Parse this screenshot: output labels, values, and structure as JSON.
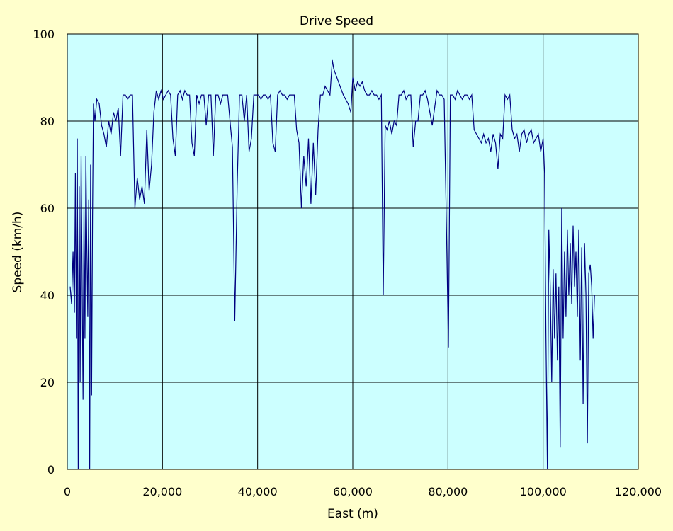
{
  "chart_data": {
    "type": "line",
    "title": "Drive Speed",
    "xlabel": "East (m)",
    "ylabel": "Speed (km/h)",
    "xlim": [
      0,
      120000
    ],
    "ylim": [
      0,
      100
    ],
    "x_ticks": [
      0,
      20000,
      40000,
      60000,
      80000,
      100000,
      120000
    ],
    "x_tick_labels": [
      "0",
      "20,000",
      "40,000",
      "60,000",
      "80,000",
      "100,000",
      "120,000"
    ],
    "y_ticks": [
      0,
      20,
      40,
      60,
      80,
      100
    ],
    "y_tick_labels": [
      "0",
      "20",
      "40",
      "60",
      "80",
      "100"
    ],
    "grid": true,
    "legend": "none",
    "colors": {
      "background": "#ffffcc",
      "plot_area": "#ccffff",
      "line": "#000080",
      "grid": "#000000"
    },
    "series": [
      {
        "values": [
          [
            600,
            42
          ],
          [
            900,
            38
          ],
          [
            1200,
            50
          ],
          [
            1500,
            36
          ],
          [
            1700,
            68
          ],
          [
            1900,
            30
          ],
          [
            2100,
            76
          ],
          [
            2300,
            0
          ],
          [
            2500,
            65
          ],
          [
            2700,
            20
          ],
          [
            2900,
            72
          ],
          [
            3100,
            45
          ],
          [
            3300,
            16
          ],
          [
            3500,
            60
          ],
          [
            3700,
            30
          ],
          [
            3900,
            72
          ],
          [
            4100,
            52
          ],
          [
            4300,
            35
          ],
          [
            4500,
            62
          ],
          [
            4700,
            0
          ],
          [
            4900,
            70
          ],
          [
            5100,
            17
          ],
          [
            5300,
            58
          ],
          [
            5500,
            84
          ],
          [
            5800,
            80
          ],
          [
            6200,
            85
          ],
          [
            6700,
            84
          ],
          [
            7200,
            79
          ],
          [
            7700,
            77
          ],
          [
            8200,
            74
          ],
          [
            8700,
            80
          ],
          [
            9200,
            77
          ],
          [
            9700,
            82
          ],
          [
            10200,
            80
          ],
          [
            10700,
            83
          ],
          [
            11200,
            72
          ],
          [
            11700,
            86
          ],
          [
            12200,
            86
          ],
          [
            12700,
            85
          ],
          [
            13200,
            86
          ],
          [
            13700,
            86
          ],
          [
            14200,
            60
          ],
          [
            14700,
            67
          ],
          [
            15200,
            62
          ],
          [
            15700,
            65
          ],
          [
            16200,
            61
          ],
          [
            16700,
            78
          ],
          [
            17200,
            64
          ],
          [
            17700,
            70
          ],
          [
            18200,
            82
          ],
          [
            18700,
            87
          ],
          [
            19200,
            85
          ],
          [
            19700,
            87
          ],
          [
            20200,
            85
          ],
          [
            20700,
            86
          ],
          [
            21200,
            87
          ],
          [
            21700,
            86
          ],
          [
            22200,
            76
          ],
          [
            22700,
            72
          ],
          [
            23200,
            86
          ],
          [
            23700,
            87
          ],
          [
            24200,
            85
          ],
          [
            24700,
            87
          ],
          [
            25200,
            86
          ],
          [
            25700,
            86
          ],
          [
            26200,
            75
          ],
          [
            26700,
            72
          ],
          [
            27200,
            86
          ],
          [
            27700,
            84
          ],
          [
            28200,
            86
          ],
          [
            28700,
            86
          ],
          [
            29200,
            79
          ],
          [
            29700,
            86
          ],
          [
            30200,
            86
          ],
          [
            30700,
            72
          ],
          [
            31200,
            86
          ],
          [
            31700,
            86
          ],
          [
            32200,
            84
          ],
          [
            32700,
            86
          ],
          [
            33200,
            86
          ],
          [
            33700,
            86
          ],
          [
            34200,
            80
          ],
          [
            34700,
            74
          ],
          [
            35200,
            34
          ],
          [
            35700,
            65
          ],
          [
            36200,
            86
          ],
          [
            36700,
            86
          ],
          [
            37200,
            80
          ],
          [
            37700,
            86
          ],
          [
            38200,
            73
          ],
          [
            38700,
            76
          ],
          [
            39200,
            86
          ],
          [
            39700,
            86
          ],
          [
            40200,
            86
          ],
          [
            40700,
            85
          ],
          [
            41200,
            86
          ],
          [
            41700,
            86
          ],
          [
            42200,
            85
          ],
          [
            42700,
            86
          ],
          [
            43200,
            75
          ],
          [
            43700,
            73
          ],
          [
            44200,
            86
          ],
          [
            44700,
            87
          ],
          [
            45200,
            86
          ],
          [
            45700,
            86
          ],
          [
            46200,
            85
          ],
          [
            46700,
            86
          ],
          [
            47200,
            86
          ],
          [
            47700,
            86
          ],
          [
            48200,
            78
          ],
          [
            48700,
            75
          ],
          [
            49200,
            60
          ],
          [
            49700,
            72
          ],
          [
            50200,
            65
          ],
          [
            50700,
            76
          ],
          [
            51200,
            61
          ],
          [
            51700,
            75
          ],
          [
            52200,
            63
          ],
          [
            52700,
            78
          ],
          [
            53200,
            86
          ],
          [
            53700,
            86
          ],
          [
            54200,
            88
          ],
          [
            54700,
            87
          ],
          [
            55200,
            86
          ],
          [
            55700,
            94
          ],
          [
            56000,
            92
          ],
          [
            57000,
            89
          ],
          [
            58000,
            86
          ],
          [
            59000,
            84
          ],
          [
            59600,
            82
          ],
          [
            60000,
            90
          ],
          [
            60500,
            87
          ],
          [
            61000,
            89
          ],
          [
            61500,
            88
          ],
          [
            62000,
            89
          ],
          [
            62500,
            87
          ],
          [
            63000,
            86
          ],
          [
            63500,
            86
          ],
          [
            64000,
            87
          ],
          [
            64500,
            86
          ],
          [
            65000,
            86
          ],
          [
            65500,
            85
          ],
          [
            66000,
            86
          ],
          [
            66400,
            40
          ],
          [
            66800,
            79
          ],
          [
            67200,
            78
          ],
          [
            67700,
            80
          ],
          [
            68200,
            77
          ],
          [
            68700,
            80
          ],
          [
            69200,
            79
          ],
          [
            69700,
            86
          ],
          [
            70200,
            86
          ],
          [
            70700,
            87
          ],
          [
            71200,
            85
          ],
          [
            71700,
            86
          ],
          [
            72200,
            86
          ],
          [
            72700,
            74
          ],
          [
            73200,
            80
          ],
          [
            73700,
            80
          ],
          [
            74200,
            86
          ],
          [
            74700,
            86
          ],
          [
            75200,
            87
          ],
          [
            75700,
            85
          ],
          [
            76200,
            82
          ],
          [
            76700,
            79
          ],
          [
            77200,
            83
          ],
          [
            77700,
            87
          ],
          [
            78200,
            86
          ],
          [
            78700,
            86
          ],
          [
            79200,
            85
          ],
          [
            79700,
            55
          ],
          [
            80100,
            28
          ],
          [
            80500,
            86
          ],
          [
            81000,
            86
          ],
          [
            81500,
            85
          ],
          [
            82000,
            87
          ],
          [
            82500,
            86
          ],
          [
            83000,
            85
          ],
          [
            83500,
            86
          ],
          [
            84000,
            86
          ],
          [
            84500,
            85
          ],
          [
            85000,
            86
          ],
          [
            85500,
            78
          ],
          [
            86000,
            77
          ],
          [
            86500,
            76
          ],
          [
            87000,
            75
          ],
          [
            87500,
            77
          ],
          [
            88000,
            75
          ],
          [
            88500,
            76
          ],
          [
            89000,
            73
          ],
          [
            89500,
            77
          ],
          [
            90000,
            75
          ],
          [
            90500,
            69
          ],
          [
            91000,
            77
          ],
          [
            91500,
            76
          ],
          [
            92000,
            86
          ],
          [
            92500,
            85
          ],
          [
            93000,
            86
          ],
          [
            93500,
            78
          ],
          [
            94000,
            76
          ],
          [
            94500,
            77
          ],
          [
            95000,
            73
          ],
          [
            95500,
            77
          ],
          [
            96000,
            78
          ],
          [
            96500,
            75
          ],
          [
            97000,
            77
          ],
          [
            97500,
            78
          ],
          [
            98000,
            75
          ],
          [
            98500,
            76
          ],
          [
            99000,
            77
          ],
          [
            99500,
            73
          ],
          [
            100000,
            76
          ],
          [
            100300,
            68
          ],
          [
            100600,
            30
          ],
          [
            100900,
            0
          ],
          [
            101200,
            55
          ],
          [
            101500,
            42
          ],
          [
            101800,
            20
          ],
          [
            102100,
            46
          ],
          [
            102400,
            30
          ],
          [
            102700,
            45
          ],
          [
            103000,
            25
          ],
          [
            103300,
            42
          ],
          [
            103600,
            5
          ],
          [
            103900,
            60
          ],
          [
            104200,
            30
          ],
          [
            104500,
            50
          ],
          [
            104800,
            35
          ],
          [
            105100,
            55
          ],
          [
            105400,
            40
          ],
          [
            105700,
            52
          ],
          [
            106000,
            38
          ],
          [
            106300,
            56
          ],
          [
            106600,
            42
          ],
          [
            106900,
            50
          ],
          [
            107200,
            35
          ],
          [
            107500,
            55
          ],
          [
            107800,
            25
          ],
          [
            108100,
            51
          ],
          [
            108400,
            15
          ],
          [
            108700,
            52
          ],
          [
            109000,
            40
          ],
          [
            109300,
            6
          ],
          [
            109600,
            45
          ],
          [
            109900,
            47
          ],
          [
            110200,
            42
          ],
          [
            110500,
            30
          ],
          [
            110800,
            40
          ]
        ]
      }
    ]
  }
}
